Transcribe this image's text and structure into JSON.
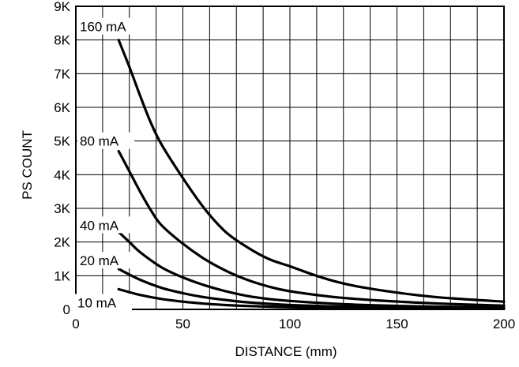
{
  "chart_data": {
    "type": "line",
    "title": "",
    "xlabel": "DISTANCE (mm)",
    "ylabel": "PS COUNT",
    "xlim": [
      0,
      200
    ],
    "ylim": [
      0,
      9000
    ],
    "xticks": [
      0,
      50,
      100,
      150,
      200
    ],
    "xtick_labels": [
      "0",
      "50",
      "100",
      "150",
      "200"
    ],
    "yticks": [
      0,
      1000,
      2000,
      3000,
      4000,
      5000,
      6000,
      7000,
      8000,
      9000
    ],
    "ytick_labels": [
      "0",
      "1K",
      "2K",
      "3K",
      "4K",
      "5K",
      "6K",
      "7K",
      "8K",
      "9K"
    ],
    "grid": true,
    "legend": "none (curves labelled directly)",
    "series": [
      {
        "name": "160 mA",
        "x": [
          20,
          25,
          30,
          35,
          40,
          50,
          60,
          70,
          80,
          90,
          100,
          110,
          120,
          130,
          140,
          150,
          160,
          175,
          200
        ],
        "y": [
          8000,
          7200,
          6350,
          5550,
          4900,
          3900,
          3000,
          2300,
          1850,
          1500,
          1280,
          1050,
          850,
          700,
          590,
          500,
          420,
          330,
          230
        ]
      },
      {
        "name": "80 mA",
        "x": [
          20,
          25,
          30,
          35,
          40,
          50,
          60,
          70,
          80,
          90,
          100,
          120,
          140,
          160,
          180,
          200
        ],
        "y": [
          4700,
          4100,
          3500,
          2950,
          2500,
          1950,
          1500,
          1150,
          880,
          680,
          540,
          370,
          270,
          200,
          150,
          110
        ]
      },
      {
        "name": "40 mA",
        "x": [
          20,
          25,
          30,
          40,
          50,
          60,
          70,
          80,
          90,
          100,
          120,
          140,
          160,
          180,
          200
        ],
        "y": [
          2300,
          2000,
          1700,
          1250,
          950,
          720,
          540,
          400,
          310,
          250,
          170,
          120,
          90,
          70,
          55
        ]
      },
      {
        "name": "20 mA",
        "x": [
          20,
          30,
          40,
          50,
          60,
          70,
          80,
          100,
          120,
          140,
          160,
          180,
          200
        ],
        "y": [
          1200,
          880,
          640,
          480,
          360,
          280,
          210,
          130,
          90,
          65,
          48,
          38,
          30
        ]
      },
      {
        "name": "10 mA",
        "x": [
          20,
          30,
          40,
          50,
          60,
          70,
          80,
          100,
          120,
          140,
          160,
          180,
          200
        ],
        "y": [
          600,
          430,
          310,
          230,
          170,
          130,
          100,
          65,
          45,
          33,
          25,
          20,
          15
        ]
      }
    ]
  }
}
